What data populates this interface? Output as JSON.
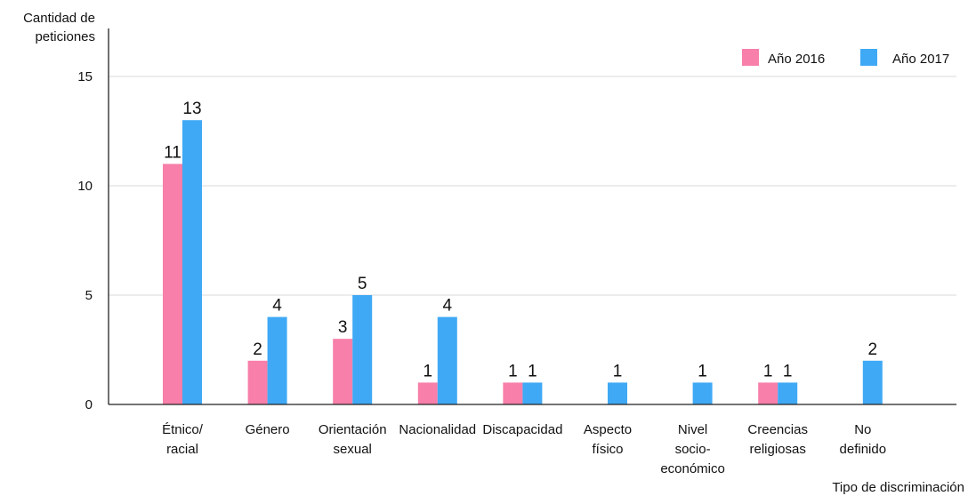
{
  "chart_data": {
    "type": "bar",
    "ylabel": "Cantidad de peticiones",
    "xlabel": "Tipo de discriminación",
    "ylim": [
      0,
      15
    ],
    "yticks": [
      0,
      5,
      10,
      15
    ],
    "grid": true,
    "legend_position": "top-right",
    "categories": [
      "Étnico/ racial",
      "Género",
      "Orientación sexual",
      "Nacionalidad",
      "Discapacidad",
      "Aspecto físico",
      "Nivel socio- económico",
      "Creencias religiosas",
      "No definido"
    ],
    "series": [
      {
        "name": "Año 2016",
        "color": "#f77fa9",
        "values": [
          11,
          2,
          3,
          1,
          1,
          null,
          null,
          1,
          null
        ]
      },
      {
        "name": "Año 2017",
        "color": "#3fa9f5",
        "values": [
          13,
          4,
          5,
          4,
          1,
          1,
          1,
          1,
          2
        ]
      }
    ]
  }
}
